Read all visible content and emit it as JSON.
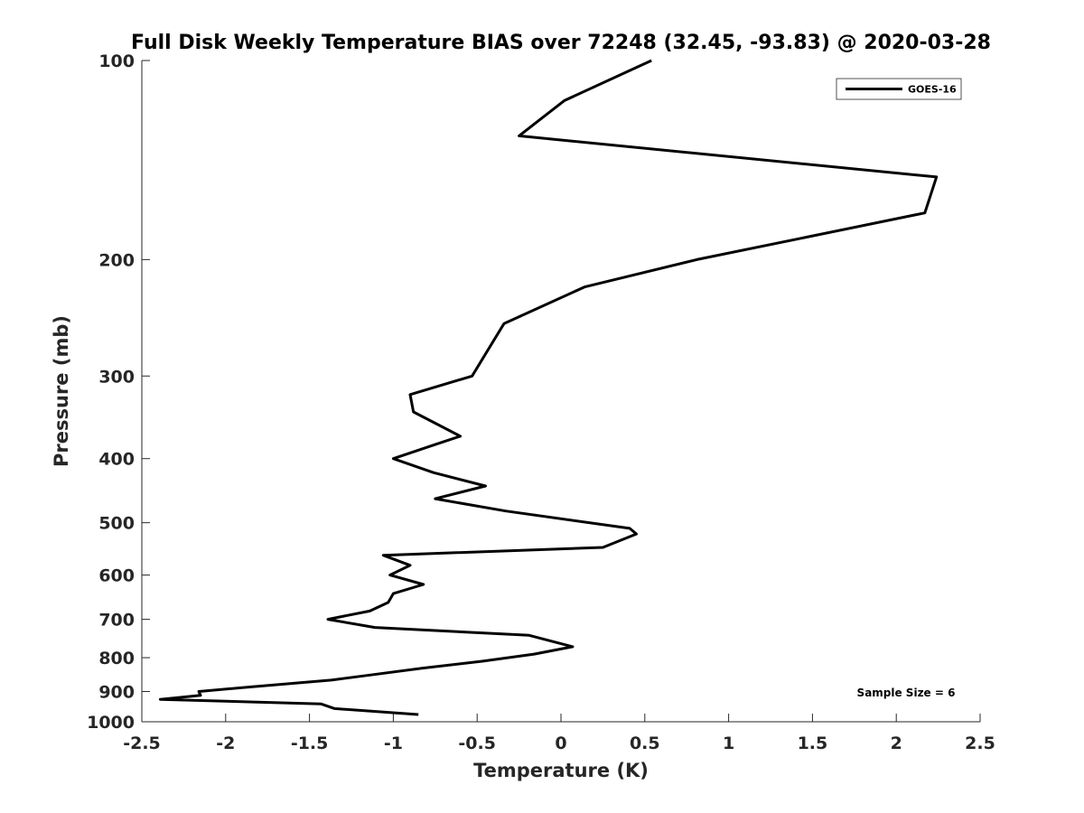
{
  "chart_data": {
    "type": "line",
    "title": "Full Disk Weekly Temperature BIAS over 72248 (32.45, -93.83) @ 2020-03-28",
    "xlabel": "Temperature (K)",
    "ylabel": "Pressure (mb)",
    "xlim": [
      -2.5,
      2.5
    ],
    "ylim": [
      1000,
      100
    ],
    "yscale": "log",
    "x_ticks": [
      -2.5,
      -2,
      -1.5,
      -1,
      -0.5,
      0,
      0.5,
      1,
      1.5,
      2,
      2.5
    ],
    "x_tick_labels": [
      "-2.5",
      "-2",
      "-1.5",
      "-1",
      "-0.5",
      "0",
      "0.5",
      "1",
      "1.5",
      "2",
      "2.5"
    ],
    "y_ticks": [
      100,
      200,
      300,
      400,
      500,
      600,
      700,
      800,
      900,
      1000
    ],
    "y_tick_labels": [
      "100",
      "200",
      "300",
      "400",
      "500",
      "600",
      "700",
      "800",
      "900",
      "1000"
    ],
    "grid": false,
    "legend_position": "top-right",
    "series": [
      {
        "name": "GOES-16",
        "color": "#000000",
        "points": [
          [
            0.54,
            100
          ],
          [
            0.02,
            115
          ],
          [
            -0.25,
            130
          ],
          [
            2.24,
            150
          ],
          [
            2.17,
            170
          ],
          [
            0.81,
            200
          ],
          [
            0.14,
            220
          ],
          [
            -0.34,
            250
          ],
          [
            -0.53,
            300
          ],
          [
            -0.9,
            320
          ],
          [
            -0.88,
            340
          ],
          [
            -0.6,
            370
          ],
          [
            -0.74,
            380
          ],
          [
            -1.0,
            400
          ],
          [
            -0.76,
            420
          ],
          [
            -0.45,
            440
          ],
          [
            -0.75,
            460
          ],
          [
            -0.33,
            480
          ],
          [
            0.41,
            510
          ],
          [
            0.45,
            520
          ],
          [
            0.25,
            545
          ],
          [
            -1.06,
            560
          ],
          [
            -0.9,
            580
          ],
          [
            -1.02,
            600
          ],
          [
            -0.82,
            620
          ],
          [
            -1.0,
            640
          ],
          [
            -1.03,
            660
          ],
          [
            -1.14,
            680
          ],
          [
            -1.39,
            700
          ],
          [
            -1.11,
            720
          ],
          [
            -0.19,
            740
          ],
          [
            0.07,
            770
          ],
          [
            -0.16,
            790
          ],
          [
            -0.47,
            810
          ],
          [
            -0.83,
            830
          ],
          [
            -1.14,
            850
          ],
          [
            -1.37,
            865
          ],
          [
            -1.84,
            885
          ],
          [
            -2.16,
            900
          ],
          [
            -2.15,
            912
          ],
          [
            -2.39,
            925
          ],
          [
            -1.43,
            940
          ],
          [
            -1.35,
            955
          ],
          [
            -0.85,
            975
          ]
        ]
      }
    ],
    "annotations": [
      "Sample Size = 6"
    ]
  }
}
